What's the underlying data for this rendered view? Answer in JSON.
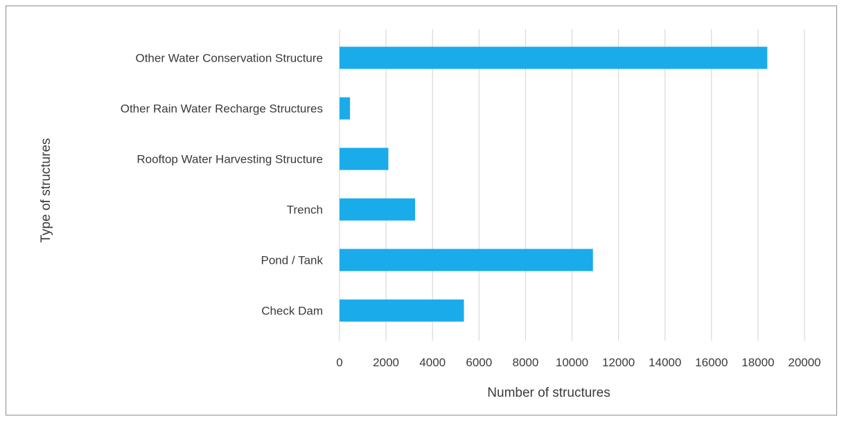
{
  "chart_data": {
    "type": "bar",
    "orientation": "horizontal",
    "title": "",
    "xlabel": "Number of structures",
    "ylabel": "Type of structures",
    "categories": [
      "Other Water Conservation Structure",
      "Other Rain Water Recharge Structures",
      "Rooftop Water Harvesting Structure",
      "Trench",
      "Pond / Tank",
      "Check Dam"
    ],
    "values": [
      18400,
      450,
      2100,
      3250,
      10900,
      5350
    ],
    "xlim": [
      0,
      20000
    ],
    "xticks": [
      0,
      2000,
      4000,
      6000,
      8000,
      10000,
      12000,
      14000,
      16000,
      18000,
      20000
    ],
    "grid": true,
    "legend": "none",
    "bar_color": "#1aabeb"
  }
}
